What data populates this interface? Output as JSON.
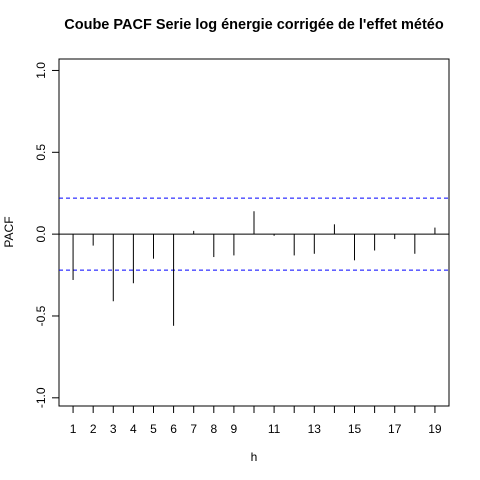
{
  "chart_data": {
    "type": "bar",
    "title": "Coube PACF Serie log énergie corrigée de l'effet météo",
    "xlabel": "h",
    "ylabel": "PACF",
    "xlim": [
      0.3,
      19.7
    ],
    "ylim": [
      -1.05,
      1.07
    ],
    "x": [
      1,
      2,
      3,
      4,
      5,
      6,
      7,
      8,
      9,
      10,
      11,
      12,
      13,
      14,
      15,
      16,
      17,
      18,
      19
    ],
    "values": [
      -0.28,
      -0.07,
      -0.41,
      -0.3,
      -0.15,
      -0.56,
      0.02,
      -0.14,
      -0.13,
      0.14,
      -0.01,
      -0.13,
      -0.12,
      0.06,
      -0.16,
      -0.1,
      -0.03,
      -0.12,
      0.04
    ],
    "confidence_bound": 0.22,
    "x_ticks": [
      1,
      2,
      3,
      4,
      5,
      6,
      7,
      8,
      9,
      10,
      11,
      12,
      13,
      14,
      15,
      16,
      17,
      18,
      19
    ],
    "x_tick_labels": [
      "1",
      "2",
      "3",
      "4",
      "5",
      "6",
      "7",
      "8",
      "9",
      "",
      "11",
      "",
      "13",
      "",
      "15",
      "",
      "17",
      "",
      "19"
    ],
    "y_ticks": [
      -1.0,
      -0.5,
      0.0,
      0.5,
      1.0
    ],
    "y_tick_labels": [
      "-1.0",
      "-0.5",
      "0.0",
      "0.5",
      "1.0"
    ],
    "grid": false,
    "colors": {
      "bars": "#000000",
      "bounds": "#0000ff",
      "zero_line": "#000000"
    }
  }
}
